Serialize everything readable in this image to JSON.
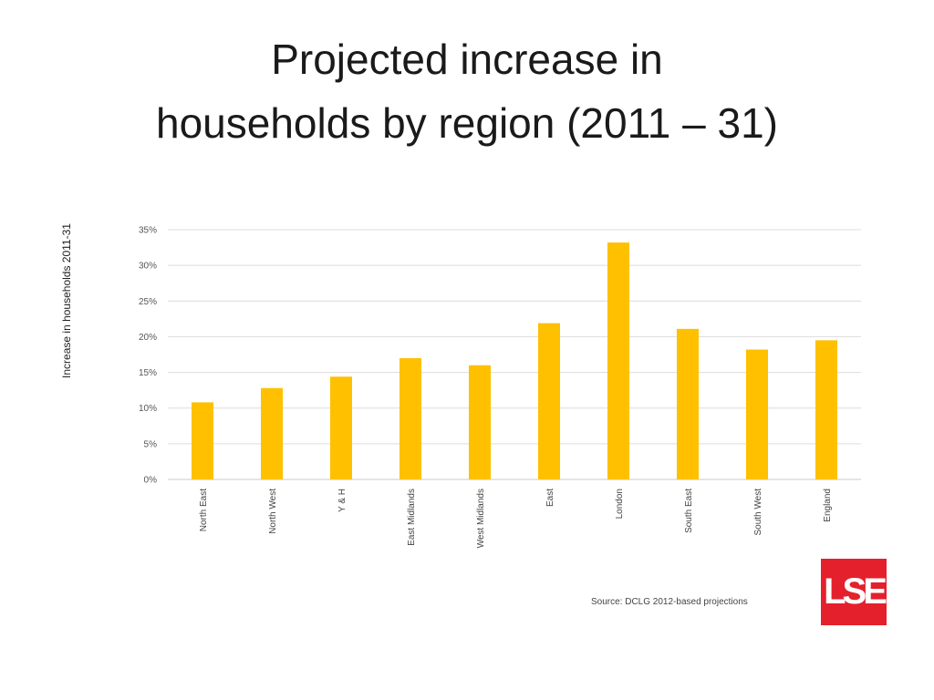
{
  "slide": {
    "title_line1": "Projected increase in",
    "title_line2": "households by region  (2011 – 31)",
    "source": "Source: DCLG 2012-based projections",
    "logo_text": "LSE",
    "logo_color": "#e4202c"
  },
  "chart_data": {
    "type": "bar",
    "title": "",
    "xlabel": "",
    "ylabel": "Increase in households 2011-31",
    "categories": [
      "North East",
      "North West",
      "Y & H",
      "East Midlands",
      "West Midlands",
      "East",
      "London",
      "South East",
      "South West",
      "England"
    ],
    "values": [
      10.8,
      12.8,
      14.4,
      17.0,
      16.0,
      21.9,
      33.2,
      21.1,
      18.2,
      19.5
    ],
    "ylim": [
      0,
      35
    ],
    "yticks": [
      0,
      5,
      10,
      15,
      20,
      25,
      30,
      35
    ],
    "ytick_format": "percent",
    "bar_color": "#ffc000",
    "grid": true,
    "legend": "none"
  }
}
